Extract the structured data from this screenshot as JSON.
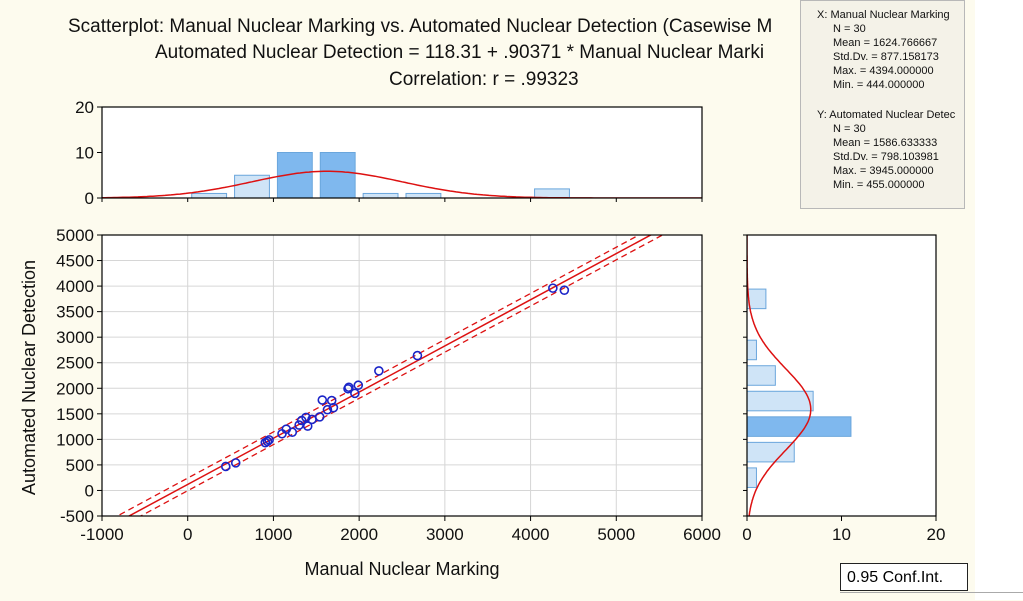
{
  "titles": {
    "line1": "Scatterplot: Manual Nuclear Marking vs. Automated Nuclear Detection (Casewise M",
    "line2": "Automated Nuclear Detection = 118.31 + .90371 * Manual Nuclear Marki",
    "line3": "Correlation: r = .99323"
  },
  "stats": {
    "x_label": "X:  Manual Nuclear Marking",
    "x_n": "N = 30",
    "x_mean": "Mean = 1624.766667",
    "x_sd": "Std.Dv. = 877.158173",
    "x_max": "Max. = 4394.000000",
    "x_min": "Min. = 444.000000",
    "y_label": "Y:  Automated Nuclear Detec",
    "y_n": "N = 30",
    "y_mean": "Mean = 1586.633333",
    "y_sd": "Std.Dv. = 798.103981",
    "y_max": "Max. = 3945.000000",
    "y_min": "Min. = 455.000000"
  },
  "legend": {
    "conf_label": "0.95 Conf.Int."
  },
  "colors": {
    "points": "#1a24c8",
    "fit": "#dd1111",
    "hist_bar": "#cfe4f7",
    "hist_bar_dark": "#7fb8ee",
    "hist_edge": "#6aa6dc"
  },
  "chart_data": [
    {
      "type": "scatter",
      "xlabel": "Manual Nuclear Marking",
      "ylabel": "Automated Nuclear Detection",
      "xlim": [
        -1000,
        6000
      ],
      "ylim": [
        -500,
        5000
      ],
      "xticks": [
        -1000,
        0,
        1000,
        2000,
        3000,
        4000,
        5000,
        6000
      ],
      "yticks": [
        -500,
        0,
        500,
        1000,
        1500,
        2000,
        2500,
        3000,
        3500,
        4000,
        4500,
        5000
      ],
      "grid": true,
      "fit": {
        "intercept": 118.31,
        "slope": 0.90371,
        "ci_half_width": 95
      },
      "points": [
        [
          444,
          470
        ],
        [
          560,
          540
        ],
        [
          905,
          935
        ],
        [
          930,
          960
        ],
        [
          950,
          990
        ],
        [
          1100,
          1110
        ],
        [
          1150,
          1200
        ],
        [
          1220,
          1140
        ],
        [
          1300,
          1280
        ],
        [
          1330,
          1370
        ],
        [
          1380,
          1430
        ],
        [
          1400,
          1260
        ],
        [
          1450,
          1390
        ],
        [
          1540,
          1440
        ],
        [
          1570,
          1770
        ],
        [
          1630,
          1580
        ],
        [
          1680,
          1760
        ],
        [
          1700,
          1620
        ],
        [
          1870,
          1990
        ],
        [
          1880,
          2020
        ],
        [
          1950,
          1900
        ],
        [
          1990,
          2060
        ],
        [
          2230,
          2340
        ],
        [
          2680,
          2640
        ],
        [
          4260,
          3960
        ],
        [
          4394,
          3920
        ]
      ]
    },
    {
      "type": "bar",
      "orientation": "vertical",
      "axis": "Manual Nuclear Marking",
      "bins": [
        [
          0,
          500
        ],
        [
          500,
          1000
        ],
        [
          1000,
          1500
        ],
        [
          1500,
          2000
        ],
        [
          2000,
          2500
        ],
        [
          2500,
          3000
        ],
        [
          4000,
          4500
        ]
      ],
      "values": [
        1,
        5,
        10,
        10,
        1,
        1,
        2
      ],
      "ylim": [
        0,
        20
      ],
      "yticks": [
        0,
        10,
        20
      ],
      "normal_curve": {
        "mean": 1624.766667,
        "sd": 877.158173,
        "n": 30,
        "bin_width": 500
      }
    },
    {
      "type": "bar",
      "orientation": "horizontal",
      "axis": "Automated Nuclear Detection",
      "bins": [
        [
          0,
          500
        ],
        [
          500,
          1000
        ],
        [
          1000,
          1500
        ],
        [
          1500,
          2000
        ],
        [
          2000,
          2500
        ],
        [
          2500,
          3000
        ],
        [
          3500,
          4000
        ]
      ],
      "values": [
        1,
        5,
        11,
        7,
        3,
        1,
        2
      ],
      "xlim": [
        0,
        20
      ],
      "xticks": [
        0,
        10,
        20
      ],
      "normal_curve": {
        "mean": 1586.633333,
        "sd": 798.103981,
        "n": 30,
        "bin_width": 500
      }
    }
  ]
}
